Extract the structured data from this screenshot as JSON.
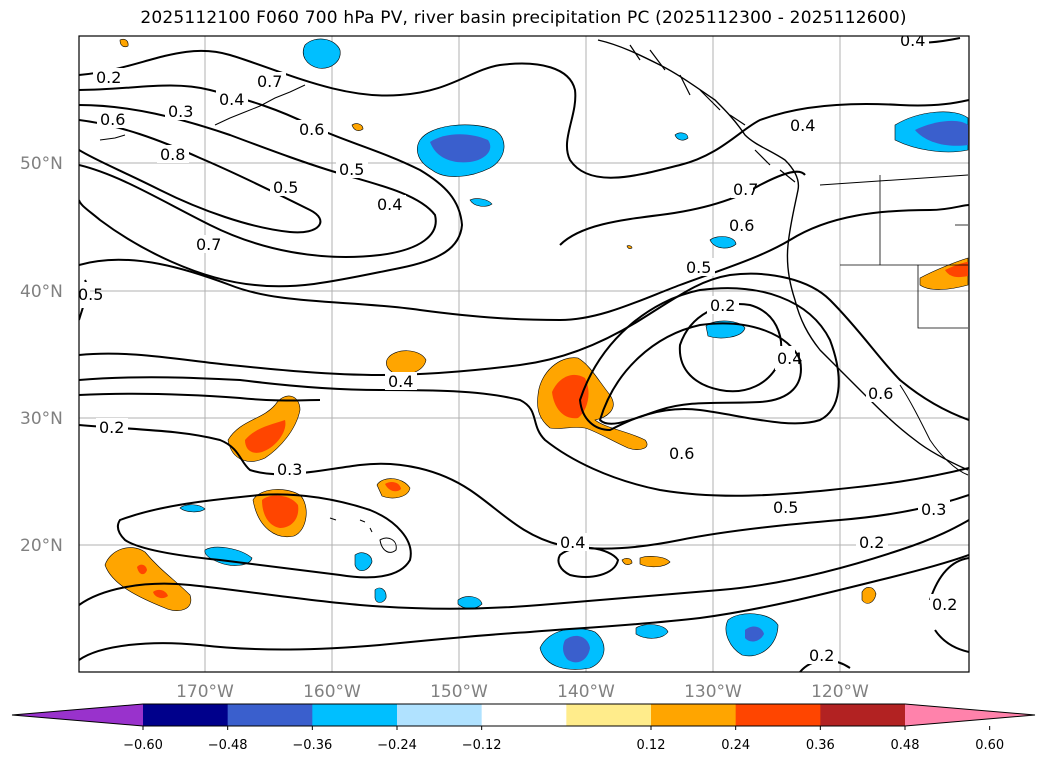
{
  "title": "2025112100 F060 700 hPa PV, river basin precipitation PC (2025112300 - 2025112600)",
  "lat_labels": [
    "50°N",
    "40°N",
    "30°N",
    "20°N"
  ],
  "lon_labels": [
    "170°W",
    "160°W",
    "150°W",
    "140°W",
    "130°W",
    "120°W"
  ],
  "colorbar": {
    "ticks": [
      "−0.60",
      "−0.48",
      "−0.36",
      "−0.24",
      "−0.12",
      "0.12",
      "0.24",
      "0.36",
      "0.48",
      "0.60"
    ],
    "colors": [
      "#9932cc",
      "#00008b",
      "#3a5fcd",
      "#00bfff",
      "#b0e2ff",
      "#ffffff",
      "#ffec8b",
      "#ffa500",
      "#ff4500",
      "#b22222",
      "#ff82ab"
    ]
  },
  "contour_labels": [
    "0.2",
    "0.3",
    "0.4",
    "0.6",
    "0.8",
    "0.7",
    "0.5",
    "0.4",
    "0.7",
    "0.5",
    "0.6",
    "0.5",
    "0.4",
    "0.4",
    "0.2",
    "0.3",
    "0.6",
    "0.5",
    "0.3",
    "0.2",
    "0.4",
    "0.2",
    "0.6",
    "0.5",
    "0.7",
    "0.4",
    "0.2",
    "0.2",
    "0.6",
    "0.4"
  ]
}
